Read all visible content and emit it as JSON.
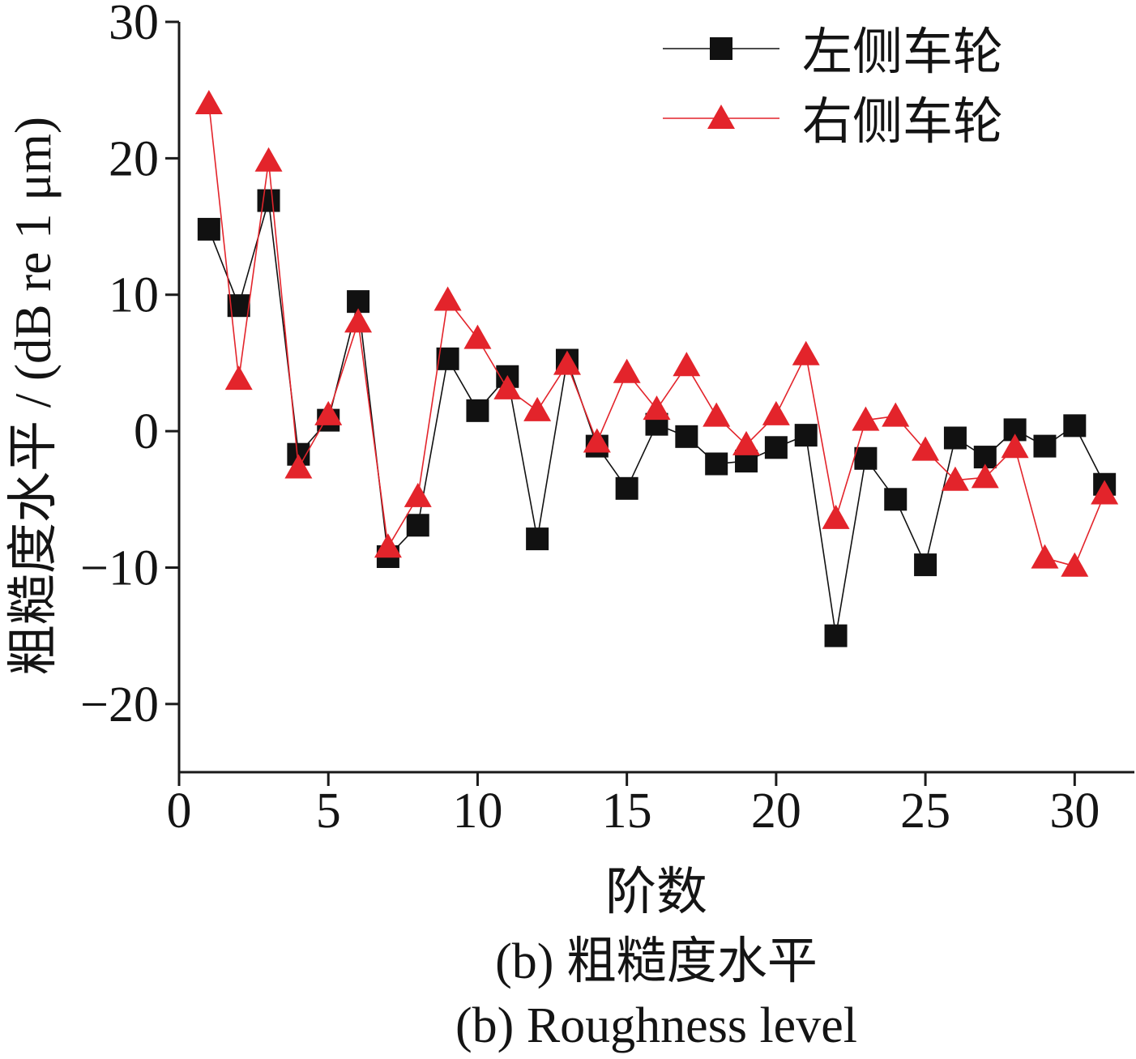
{
  "chart_data": {
    "type": "line",
    "caption": [
      "(b) 粗糙度水平",
      "(b) Roughness level"
    ],
    "xlabel": "阶数",
    "ylabel": "粗糙度水平 / (dB re 1 μm)",
    "xlim": [
      0,
      32
    ],
    "ylim": [
      -25,
      30
    ],
    "xticks": [
      0,
      5,
      10,
      15,
      20,
      25,
      30
    ],
    "xtick_labels": [
      "0",
      "5",
      "10",
      "15",
      "20",
      "25",
      "30"
    ],
    "yticks": [
      -20,
      -10,
      0,
      10,
      20,
      30
    ],
    "ytick_labels": [
      "−20",
      "−10",
      "0",
      "10",
      "20",
      "30"
    ],
    "grid": false,
    "legend": "top-right",
    "x": [
      1,
      2,
      3,
      4,
      5,
      6,
      7,
      8,
      9,
      10,
      11,
      12,
      13,
      14,
      15,
      16,
      17,
      18,
      19,
      20,
      21,
      22,
      23,
      24,
      25,
      26,
      27,
      28,
      29,
      30,
      31
    ],
    "series": [
      {
        "name": "左侧车轮",
        "color": "#111111",
        "marker": "square",
        "values": [
          14.8,
          9.2,
          16.9,
          -1.7,
          0.8,
          9.5,
          -9.2,
          -6.9,
          5.3,
          1.5,
          4.0,
          -7.9,
          5.2,
          -1.1,
          -4.2,
          0.5,
          -0.4,
          -2.4,
          -2.2,
          -1.2,
          -0.3,
          -15.0,
          -2.0,
          -5.0,
          -9.8,
          -0.5,
          -1.9,
          0.1,
          -1.1,
          0.4,
          -3.9
        ]
      },
      {
        "name": "右侧车轮",
        "color": "#e3242b",
        "marker": "triangle",
        "values": [
          24.0,
          3.8,
          19.8,
          -2.7,
          1.2,
          8.0,
          -8.5,
          -4.8,
          9.6,
          6.8,
          3.1,
          1.5,
          4.9,
          -0.8,
          4.3,
          1.6,
          4.8,
          1.1,
          -1.0,
          1.2,
          5.6,
          -6.4,
          0.8,
          1.1,
          -1.4,
          -3.6,
          -3.4,
          -1.2,
          -9.3,
          -9.9,
          -4.6
        ]
      }
    ]
  }
}
